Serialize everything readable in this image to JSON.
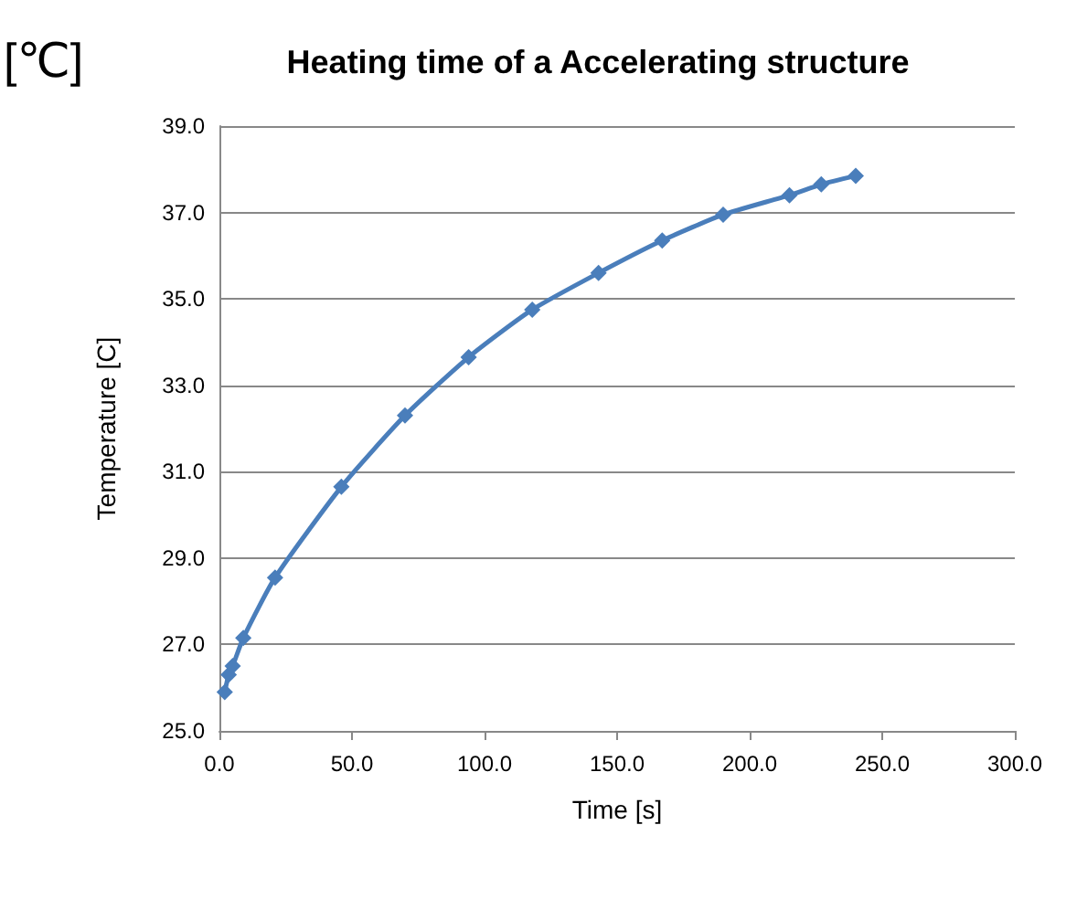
{
  "chart_data": {
    "type": "line",
    "title": "Heating time of a Accelerating structure",
    "xlabel": "Time [s]",
    "ylabel": "Temperature [C]",
    "annotations": [
      "[℃]"
    ],
    "x": [
      2,
      3.5,
      5,
      9,
      21,
      46,
      70,
      94,
      118,
      143,
      167,
      190,
      215,
      227,
      240
    ],
    "series": [
      {
        "color": "#4a7ebb",
        "values": [
          25.9,
          26.3,
          26.5,
          27.15,
          28.55,
          30.65,
          32.3,
          33.65,
          34.75,
          35.6,
          36.35,
          36.95,
          37.4,
          37.65,
          37.85
        ]
      }
    ],
    "xlim": [
      0,
      300
    ],
    "xticks": [
      {
        "value": 0,
        "label": "0.0"
      },
      {
        "value": 50,
        "label": "50.0"
      },
      {
        "value": 100,
        "label": "100.0"
      },
      {
        "value": 150,
        "label": "150.0"
      },
      {
        "value": 200,
        "label": "200.0"
      },
      {
        "value": 250,
        "label": "250.0"
      },
      {
        "value": 300,
        "label": "300.0"
      }
    ],
    "ylim": [
      25,
      39
    ],
    "yticks": [
      {
        "value": 25,
        "label": "25.0"
      },
      {
        "value": 27,
        "label": "27.0"
      },
      {
        "value": 29,
        "label": "29.0"
      },
      {
        "value": 31,
        "label": "31.0"
      },
      {
        "value": 33,
        "label": "33.0"
      },
      {
        "value": 35,
        "label": "35.0"
      },
      {
        "value": 37,
        "label": "37.0"
      },
      {
        "value": 39,
        "label": "39.0"
      }
    ],
    "grid": "y",
    "marker": "diamond",
    "line_style": "solid"
  }
}
